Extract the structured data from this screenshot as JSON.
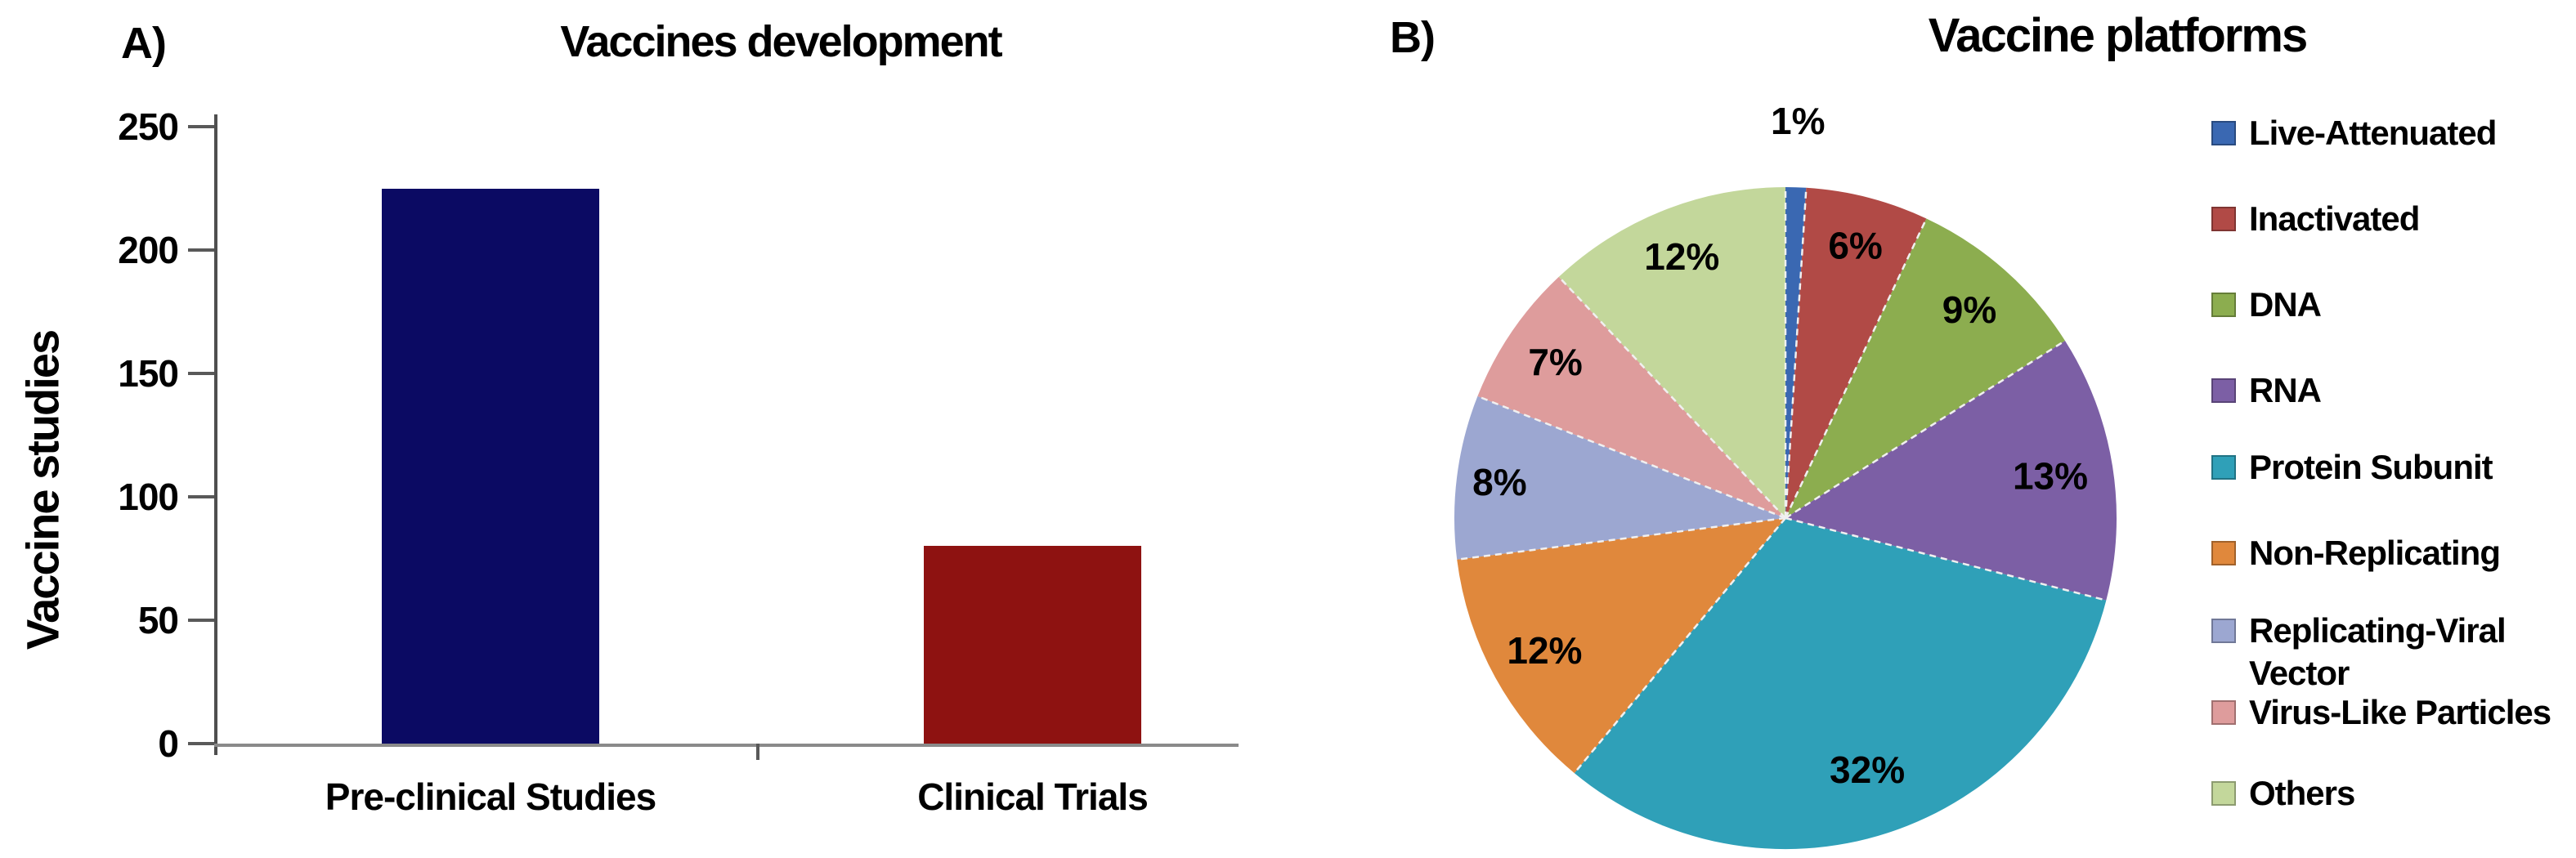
{
  "panels": {
    "a": {
      "label": "A)",
      "title": "Vaccines development"
    },
    "b": {
      "label": "B)",
      "title": "Vaccine platforms"
    }
  },
  "chart_data": [
    {
      "type": "bar",
      "title": "Vaccines development",
      "categories": [
        "Pre-clinical Studies",
        "Clinical Trials"
      ],
      "values": [
        225,
        80
      ],
      "bar_colors": [
        "#0B0A63",
        "#8E1211"
      ],
      "xlabel": "",
      "ylabel": "Vaccine studies",
      "ylim": [
        0,
        250
      ],
      "yticks": [
        0,
        50,
        100,
        150,
        200,
        250
      ],
      "grid": false,
      "legend_position": "none"
    },
    {
      "type": "pie",
      "title": "Vaccine platforms",
      "labels": [
        "Live-Attenuated",
        "Inactivated",
        "DNA",
        "RNA",
        "Protein Subunit",
        "Non-Replicating",
        "Replicating-Viral Vector",
        "Virus-Like Particles",
        "Others"
      ],
      "values": [
        1,
        6,
        9,
        13,
        32,
        12,
        8,
        7,
        12
      ],
      "slice_labels": [
        "1%",
        "6%",
        "9%",
        "13%",
        "32%",
        "12%",
        "8%",
        "7%",
        "12%"
      ],
      "colors": [
        "#3A68B2",
        "#B14A46",
        "#8CAD4F",
        "#7C5FA5",
        "#2FA0B8",
        "#E0883C",
        "#9CA7D1",
        "#DE9C9C",
        "#C3D79B"
      ],
      "start_angle_deg": 0,
      "direction": "clockwise",
      "legend_position": "right"
    }
  ]
}
